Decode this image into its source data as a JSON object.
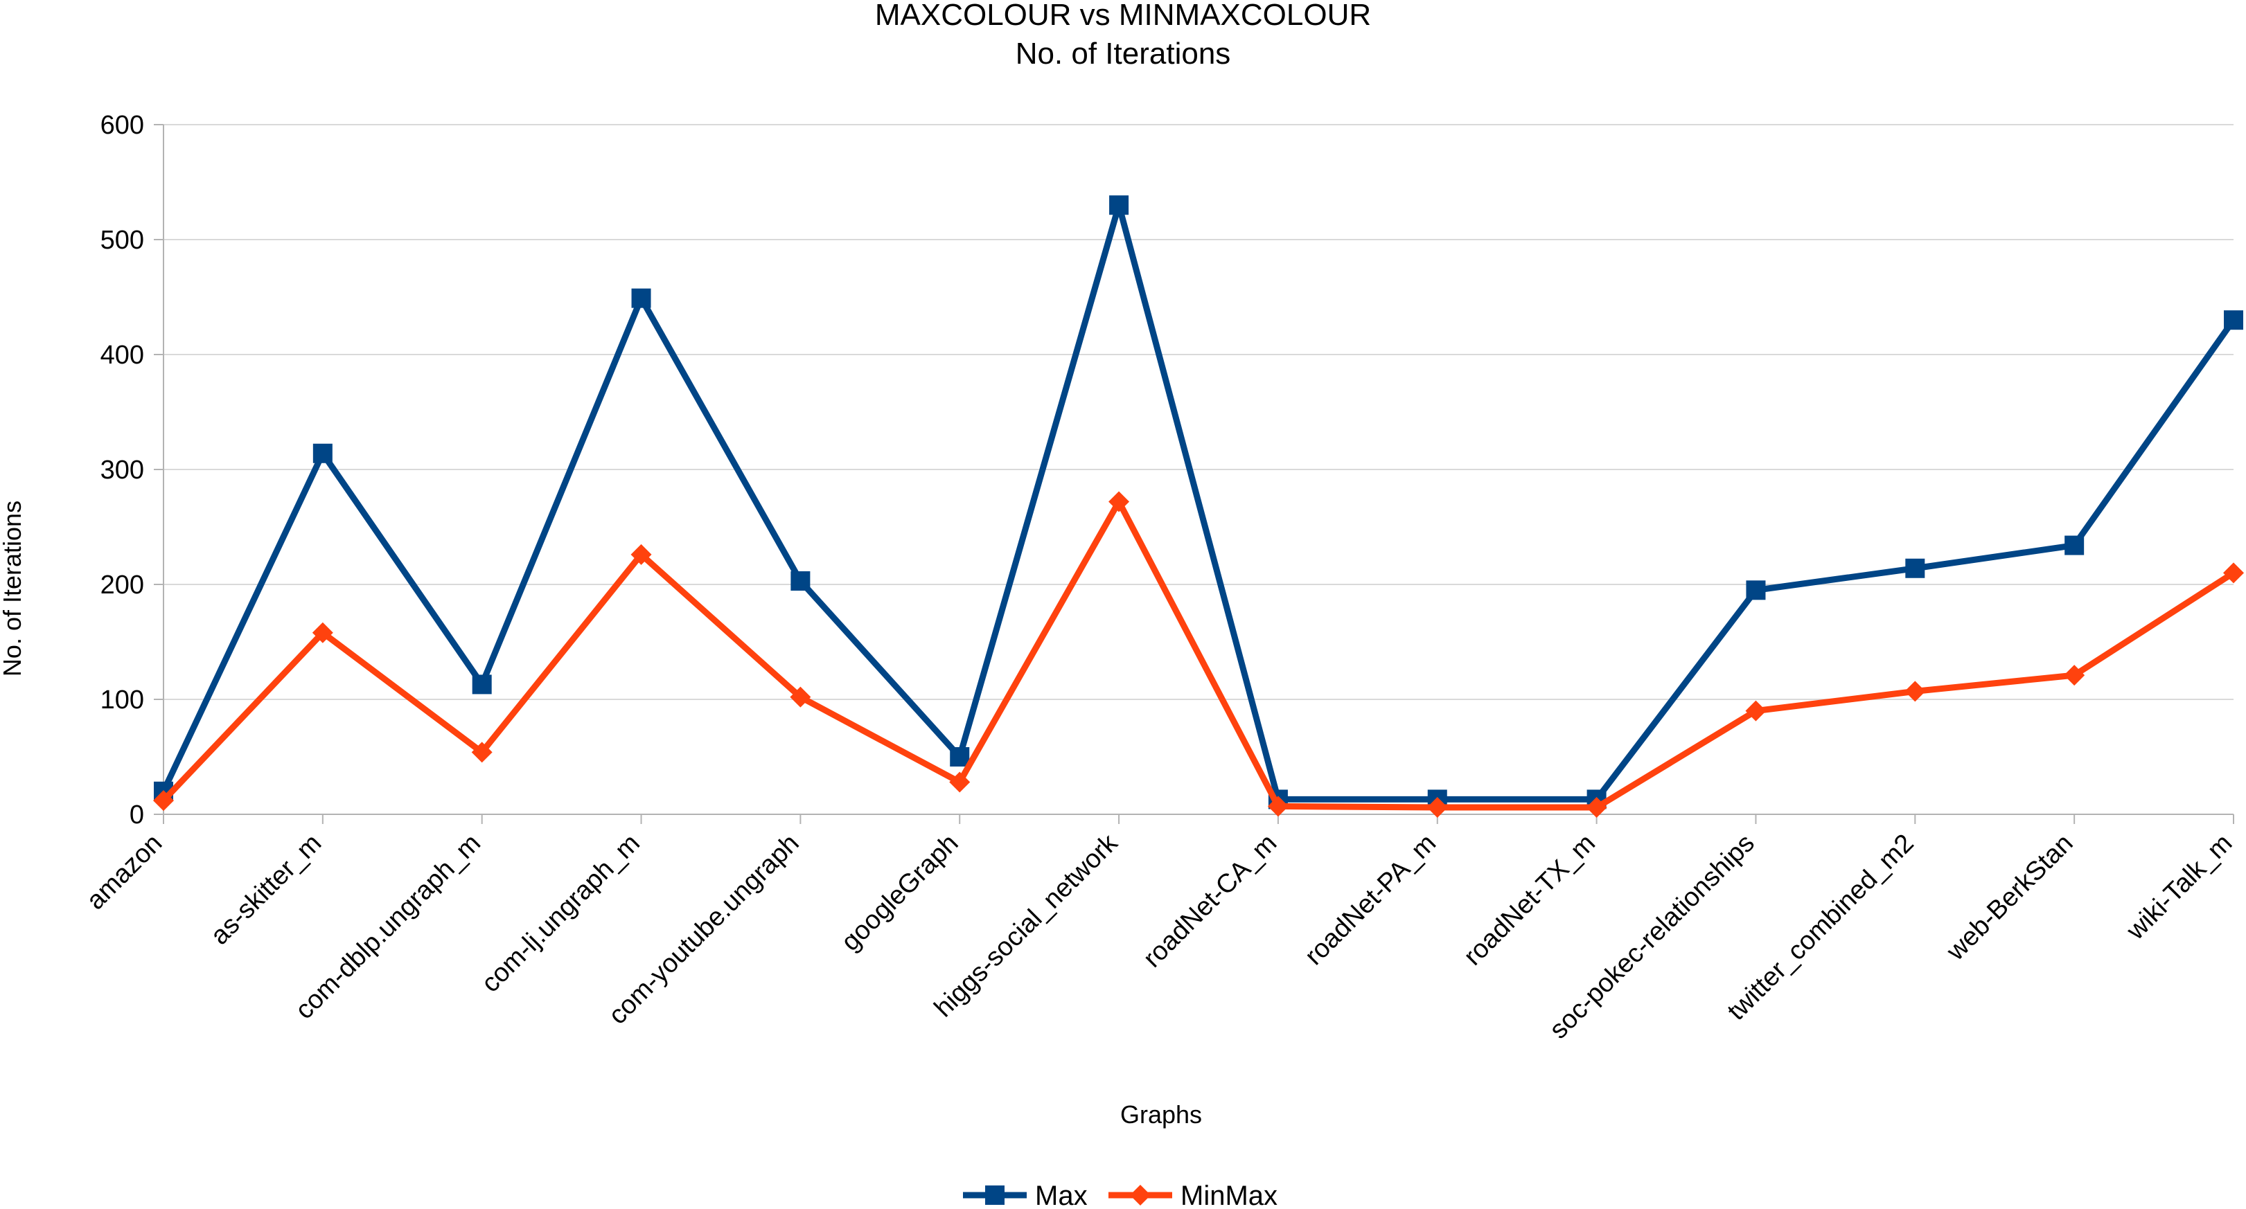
{
  "chart_data": {
    "type": "line",
    "title": "MAXCOLOUR vs MINMAXCOLOUR",
    "subtitle": "No. of Iterations",
    "xlabel": "Graphs",
    "ylabel": "No. of Iterations",
    "ylim": [
      0,
      600
    ],
    "yticks": [
      "0",
      "100",
      "200",
      "300",
      "400",
      "500",
      "600"
    ],
    "grid": true,
    "legend": "bottom",
    "categories": [
      "amazon",
      "as-skitter_m",
      "com-dblp.ungraph_m",
      "com-lj.ungraph_m",
      "com-youtube.ungraph",
      "googleGraph",
      "higgs-social_network",
      "roadNet-CA_m",
      "roadNet-PA_m",
      "roadNet-TX_m",
      "soc-pokec-relationships",
      "twitter_combined_m2",
      "web-BerkStan",
      "wiki-Talk_m"
    ],
    "series": [
      {
        "name": "Max",
        "color": "#004586",
        "marker": "square",
        "values": [
          20,
          314,
          113,
          449,
          203,
          50,
          530,
          13,
          13,
          13,
          195,
          214,
          234,
          430
        ]
      },
      {
        "name": "MinMax",
        "color": "#ff420e",
        "marker": "diamond",
        "values": [
          12,
          158,
          54,
          226,
          102,
          28,
          272,
          7,
          6,
          6,
          90,
          107,
          121,
          210
        ]
      }
    ]
  }
}
